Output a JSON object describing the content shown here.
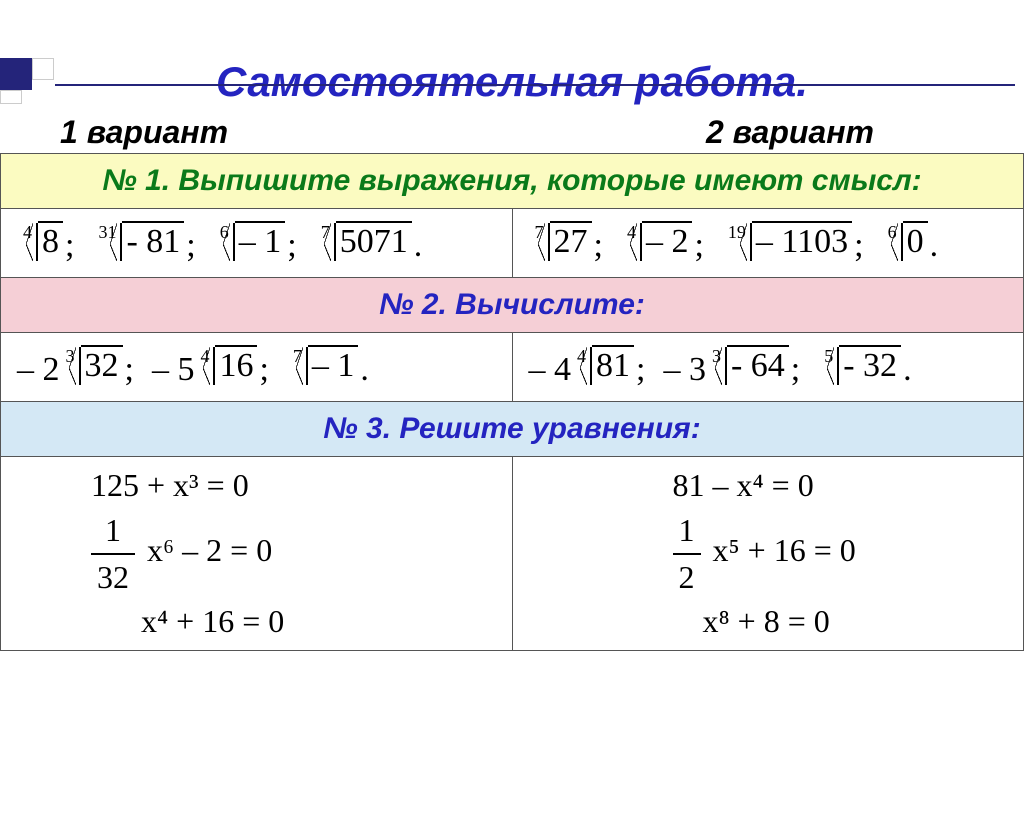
{
  "title": "Самостоятельная  работа.",
  "variant1": "1 вариант",
  "variant2": "2 вариант",
  "task1": {
    "header": "№ 1.   Выпишите  выражения,  которые  имеют смысл:",
    "v1": [
      {
        "idx": "4",
        "rad": "8",
        "suffix": ";"
      },
      {
        "idx": "31",
        "rad": "- 81",
        "suffix": ";"
      },
      {
        "idx": "6",
        "rad": "– 1",
        "suffix": ";"
      },
      {
        "idx": "7",
        "rad": "5071",
        "suffix": "."
      }
    ],
    "v2": [
      {
        "idx": "7",
        "rad": "27",
        "suffix": ";"
      },
      {
        "idx": "4",
        "rad": "– 2",
        "suffix": ";"
      },
      {
        "idx": "19",
        "rad": "– 1103",
        "suffix": ";"
      },
      {
        "idx": "6",
        "rad": "0",
        "suffix": "."
      }
    ]
  },
  "task2": {
    "header": "№ 2.  Вычислите:",
    "v1": [
      {
        "pre": "– 2",
        "idx": "3",
        "rad": "32",
        "suffix": ";"
      },
      {
        "pre": "– 5",
        "idx": "4",
        "rad": "16",
        "suffix": ";"
      },
      {
        "pre": "",
        "idx": "7",
        "rad": "– 1",
        "suffix": "."
      }
    ],
    "v2": [
      {
        "pre": "– 4",
        "idx": "4",
        "rad": "81",
        "suffix": ";"
      },
      {
        "pre": "– 3",
        "idx": "3",
        "rad": "- 64",
        "suffix": ";"
      },
      {
        "pre": "",
        "idx": "5",
        "rad": "- 32",
        "suffix": "."
      }
    ]
  },
  "task3": {
    "header": "№ 3.   Решите  уравнения:",
    "v1": {
      "eq1": "125 + x³ = 0",
      "eq2_num": "1",
      "eq2_den": "32",
      "eq2_rest": "x⁶ – 2 = 0",
      "eq3": "x⁴ + 16 = 0"
    },
    "v2": {
      "eq1": "81 – x⁴ = 0",
      "eq2_num": "1",
      "eq2_den": "2",
      "eq2_rest": "x⁵ + 16 = 0",
      "eq3": "x⁸ + 8 = 0"
    }
  },
  "colors": {
    "title": "#2424c0",
    "task1_bg": "#fbfbc1",
    "task1_fg": "#0a7a1a",
    "task2_bg": "#f5cfd6",
    "task2_fg": "#2424c0",
    "task3_bg": "#d4e8f5",
    "task3_fg": "#2424c0"
  }
}
